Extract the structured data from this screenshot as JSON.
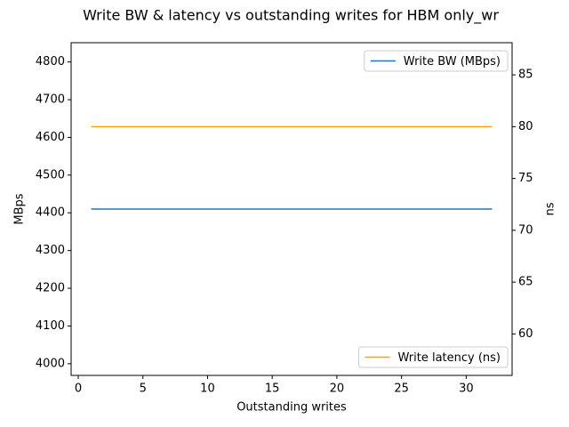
{
  "chart_data": {
    "type": "line",
    "title": "Write BW & latency vs outstanding writes for HBM only_wr",
    "xlabel": "Outstanding writes",
    "ylabel": "MBps",
    "y2label": "ns",
    "x": [
      1,
      2,
      4,
      8,
      16,
      32
    ],
    "series": [
      {
        "name": "Write BW (MBps)",
        "color": "#1f77b4",
        "values": [
          4410,
          4410,
          4410,
          4410,
          4410,
          4410
        ],
        "axis": "y",
        "legend_loc": "upper right"
      },
      {
        "name": "Write latency (ns)",
        "color": "#ffa500",
        "values": [
          80,
          80,
          80,
          80,
          80,
          80
        ],
        "axis": "y2",
        "legend_loc": "lower right"
      }
    ],
    "xlim": [
      -0.55,
      33.55
    ],
    "xticks": [
      0,
      5,
      10,
      15,
      20,
      25,
      30
    ],
    "ylim": [
      3969,
      4851
    ],
    "yticks": [
      4000,
      4100,
      4200,
      4300,
      4400,
      4500,
      4600,
      4700,
      4800
    ],
    "y2lim": [
      56,
      88.1
    ],
    "y2ticks": [
      60,
      65,
      70,
      75,
      80,
      85
    ]
  }
}
